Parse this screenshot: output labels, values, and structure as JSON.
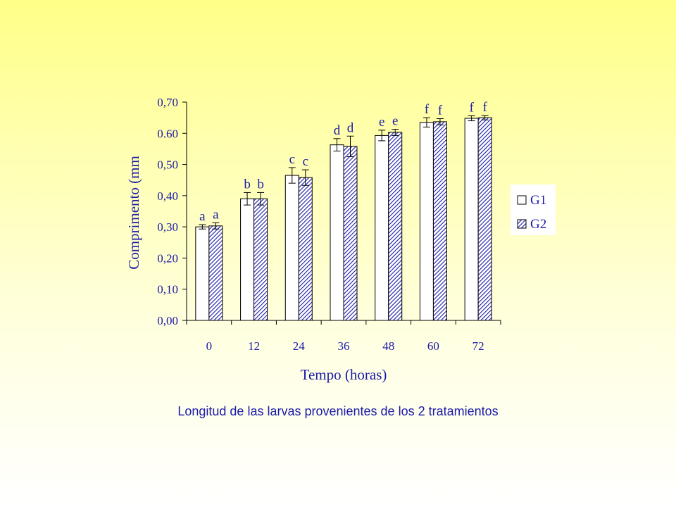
{
  "caption": "Longitud de las larvas provenientes de los 2 tratamientos",
  "colors": {
    "text": "#1a1aa8",
    "axis": "#000000",
    "bar_fill_g1": "#ffffff",
    "bar_hatch_g2": "#1a1aa8"
  },
  "chart_data": {
    "type": "bar",
    "title": "",
    "xlabel": "Tempo (horas)",
    "ylabel": "Comprimento (mm",
    "ylim": [
      0,
      0.7
    ],
    "yticks": [
      "0,00",
      "0,10",
      "0,20",
      "0,30",
      "0,40",
      "0,50",
      "0.60",
      "0,70"
    ],
    "categories": [
      "0",
      "12",
      "24",
      "36",
      "48",
      "60",
      "72"
    ],
    "series": [
      {
        "name": "G1",
        "values": [
          0.3,
          0.39,
          0.465,
          0.563,
          0.593,
          0.635,
          0.648
        ],
        "errors": [
          0.007,
          0.02,
          0.025,
          0.02,
          0.017,
          0.015,
          0.008
        ],
        "labels": [
          "a",
          "b",
          "c",
          "d",
          "e",
          "f",
          "f"
        ]
      },
      {
        "name": "G2",
        "values": [
          0.303,
          0.39,
          0.458,
          0.558,
          0.603,
          0.637,
          0.65
        ],
        "errors": [
          0.01,
          0.02,
          0.025,
          0.033,
          0.01,
          0.01,
          0.007
        ],
        "labels": [
          "a",
          "b",
          "c",
          "d",
          "e",
          "f",
          "f"
        ]
      }
    ],
    "legend": {
      "placement": "right",
      "entries": [
        "G1",
        "G2"
      ]
    },
    "grid": false
  }
}
